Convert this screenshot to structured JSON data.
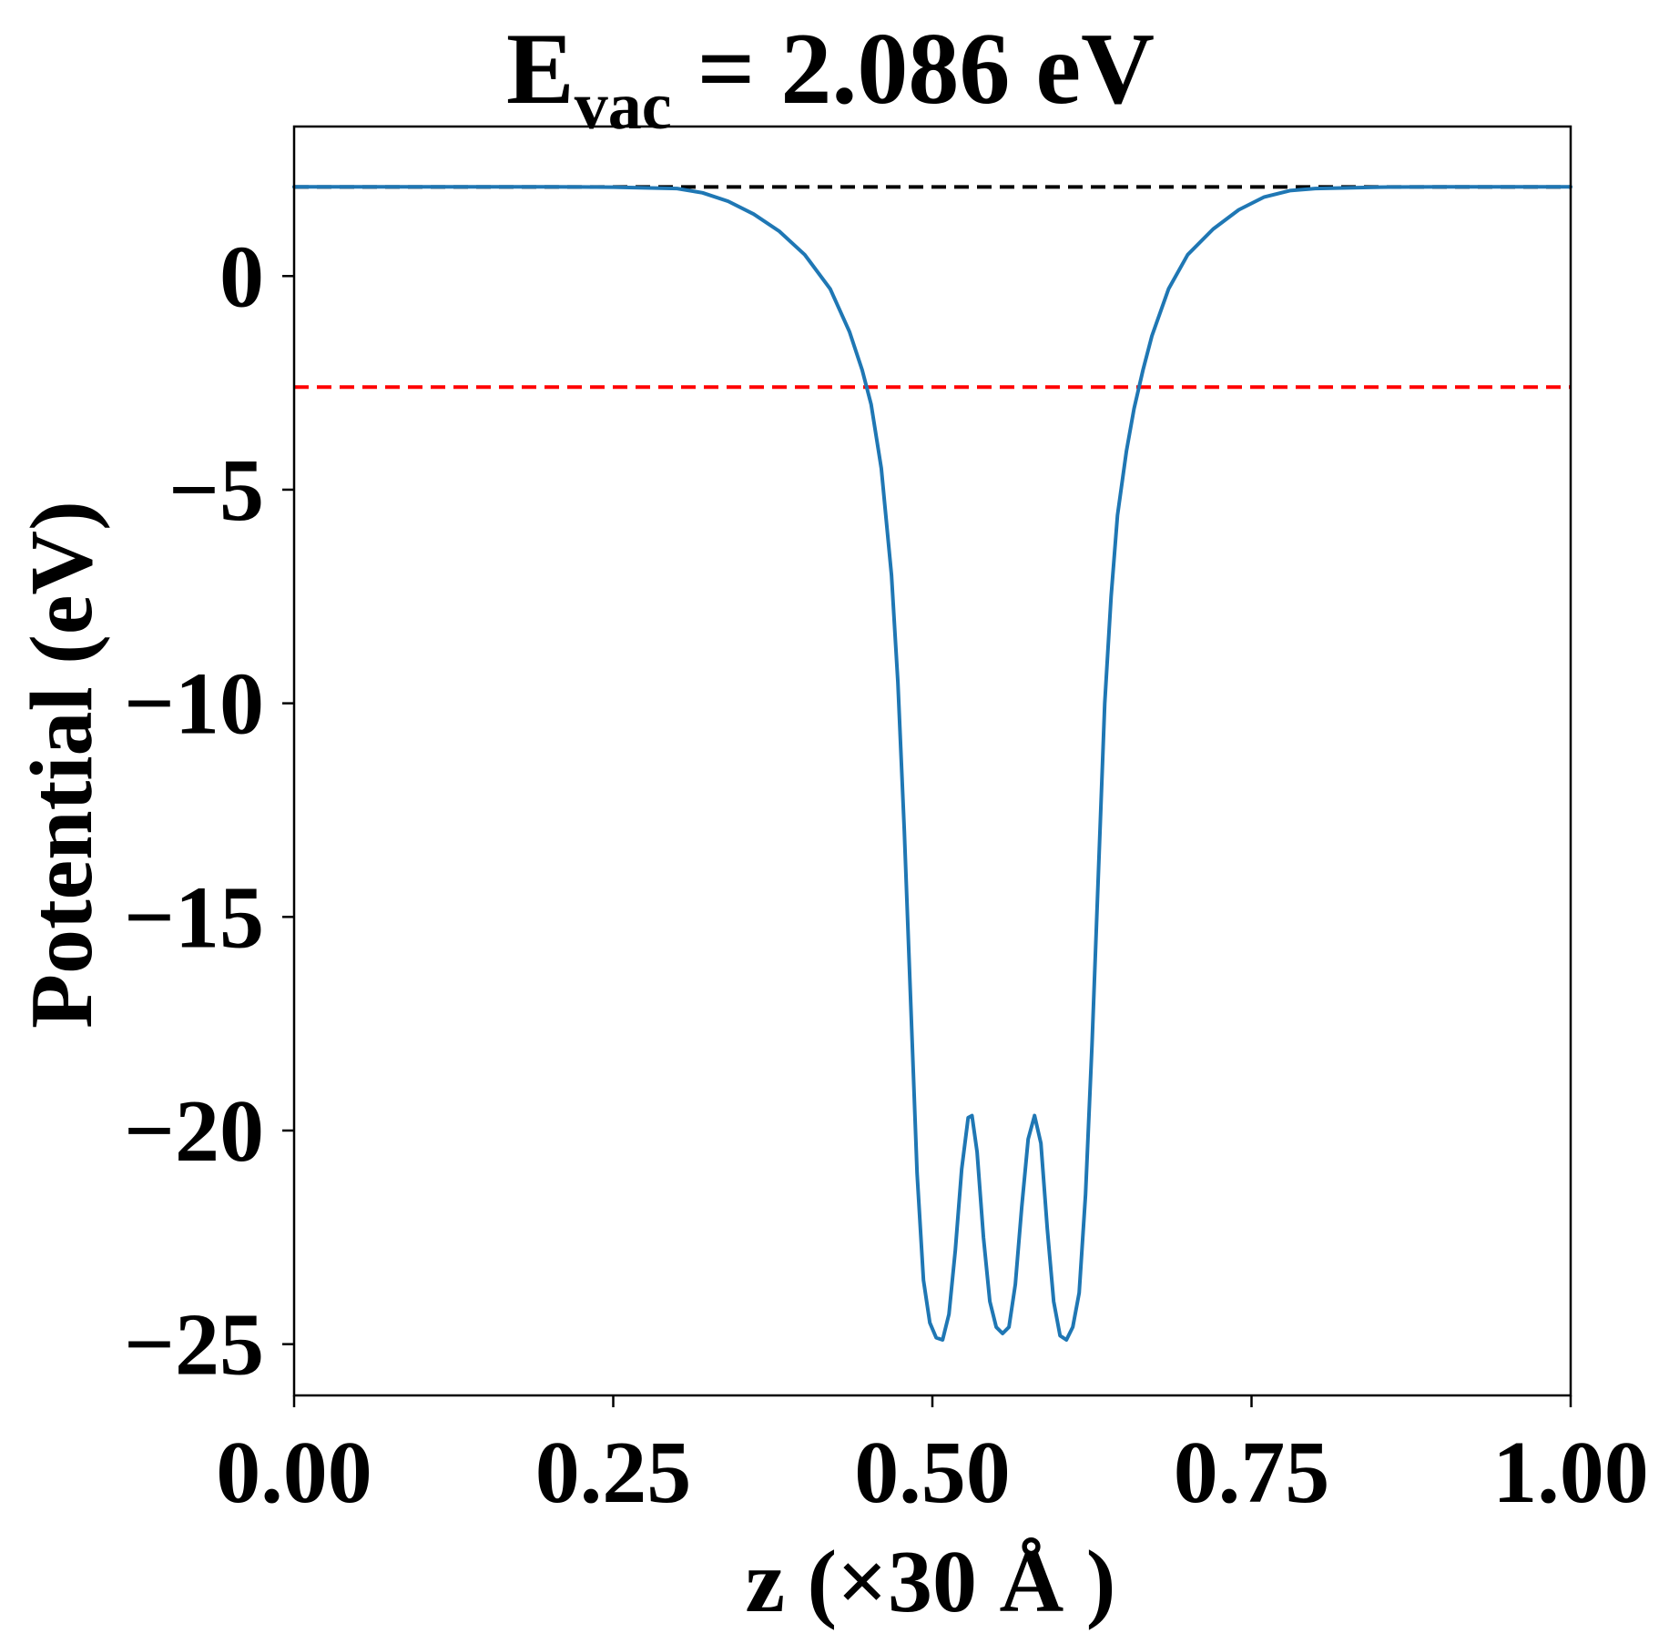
{
  "chart_data": {
    "type": "line",
    "title": {
      "main": "E",
      "subscript": "vac",
      "rest": " = 2.086 eV"
    },
    "xlabel": "z (×30 Å )",
    "ylabel": "Potential (eV)",
    "xlim": [
      0.0,
      1.0
    ],
    "ylim": [
      -26.2,
      3.5
    ],
    "x_ticks": [
      0.0,
      0.25,
      0.5,
      0.75,
      1.0
    ],
    "x_tick_labels": [
      "0.00",
      "0.25",
      "0.50",
      "0.75",
      "1.00"
    ],
    "y_ticks": [
      0,
      -5,
      -10,
      -15,
      -20,
      -25
    ],
    "y_tick_labels": [
      "0",
      "−5",
      "−10",
      "−15",
      "−20",
      "−25"
    ],
    "grid": false,
    "legend": false,
    "series": [
      {
        "color": "#1f77b4",
        "style": "solid",
        "points": [
          [
            0.0,
            2.09
          ],
          [
            0.05,
            2.09
          ],
          [
            0.1,
            2.09
          ],
          [
            0.15,
            2.09
          ],
          [
            0.2,
            2.09
          ],
          [
            0.25,
            2.08
          ],
          [
            0.3,
            2.05
          ],
          [
            0.32,
            1.95
          ],
          [
            0.34,
            1.75
          ],
          [
            0.36,
            1.45
          ],
          [
            0.38,
            1.05
          ],
          [
            0.4,
            0.5
          ],
          [
            0.42,
            -0.3
          ],
          [
            0.435,
            -1.3
          ],
          [
            0.445,
            -2.2
          ],
          [
            0.452,
            -3.0
          ],
          [
            0.46,
            -4.5
          ],
          [
            0.468,
            -7.0
          ],
          [
            0.473,
            -9.5
          ],
          [
            0.478,
            -13.0
          ],
          [
            0.483,
            -17.0
          ],
          [
            0.488,
            -21.0
          ],
          [
            0.493,
            -23.5
          ],
          [
            0.498,
            -24.5
          ],
          [
            0.503,
            -24.85
          ],
          [
            0.508,
            -24.9
          ],
          [
            0.513,
            -24.3
          ],
          [
            0.518,
            -22.8
          ],
          [
            0.523,
            -20.9
          ],
          [
            0.528,
            -19.7
          ],
          [
            0.531,
            -19.65
          ],
          [
            0.535,
            -20.5
          ],
          [
            0.54,
            -22.5
          ],
          [
            0.545,
            -24.0
          ],
          [
            0.55,
            -24.6
          ],
          [
            0.555,
            -24.75
          ],
          [
            0.56,
            -24.6
          ],
          [
            0.565,
            -23.6
          ],
          [
            0.57,
            -21.8
          ],
          [
            0.575,
            -20.2
          ],
          [
            0.58,
            -19.65
          ],
          [
            0.585,
            -20.3
          ],
          [
            0.59,
            -22.3
          ],
          [
            0.595,
            -24.0
          ],
          [
            0.6,
            -24.8
          ],
          [
            0.605,
            -24.9
          ],
          [
            0.61,
            -24.6
          ],
          [
            0.615,
            -23.8
          ],
          [
            0.62,
            -21.5
          ],
          [
            0.625,
            -18.0
          ],
          [
            0.63,
            -14.0
          ],
          [
            0.635,
            -10.0
          ],
          [
            0.64,
            -7.5
          ],
          [
            0.645,
            -5.6
          ],
          [
            0.652,
            -4.1
          ],
          [
            0.658,
            -3.1
          ],
          [
            0.665,
            -2.2
          ],
          [
            0.672,
            -1.4
          ],
          [
            0.685,
            -0.3
          ],
          [
            0.7,
            0.5
          ],
          [
            0.72,
            1.1
          ],
          [
            0.74,
            1.55
          ],
          [
            0.76,
            1.85
          ],
          [
            0.78,
            2.0
          ],
          [
            0.8,
            2.05
          ],
          [
            0.85,
            2.08
          ],
          [
            0.9,
            2.09
          ],
          [
            0.95,
            2.09
          ],
          [
            1.0,
            2.09
          ]
        ]
      }
    ],
    "reference_lines": [
      {
        "y": 2.086,
        "color": "#000000",
        "style": "dashed"
      },
      {
        "y": -2.6,
        "color": "#ff0000",
        "style": "dashed"
      }
    ]
  }
}
